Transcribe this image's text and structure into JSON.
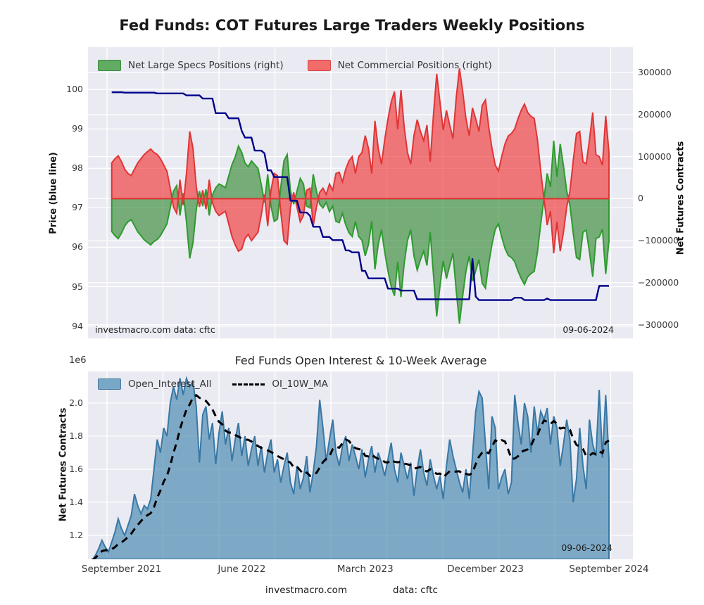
{
  "figure": {
    "title": "Fed Funds: COT Futures Large Traders Weekly Positions",
    "footer_site": "investmacro.com",
    "footer_data": "data: cftc",
    "bg_color": "#ffffff",
    "axes_bg_color": "#eaeaf2",
    "grid_color": "#ffffff"
  },
  "top_chart": {
    "source_note": "investmacro.com   data: cftc",
    "date_stamp": "09-06-2024",
    "left_axis": {
      "label": "Price (blue line)",
      "tick_values": [
        100,
        99,
        98,
        97,
        96,
        95,
        94
      ],
      "tick_labels": [
        "100",
        "99",
        "98",
        "97",
        "96",
        "95",
        "94"
      ]
    },
    "right_axis": {
      "label": "Net Futures Contracts",
      "tick_values": [
        300000,
        200000,
        100000,
        0,
        -100000,
        -200000,
        -300000
      ],
      "tick_labels": [
        "300000",
        "200000",
        "100000",
        "0",
        "−100000",
        "−200000",
        "−300000"
      ]
    },
    "colors": {
      "specs_fill": "rgba(20,120,20,0.55)",
      "specs_line": "#2e9b2e",
      "commercial_fill": "rgba(240,45,45,0.62)",
      "commercial_line": "#e03535",
      "price_line": "#00008b",
      "legend_specs_patch": "#62ab62",
      "legend_commercial_patch": "#f26c6c"
    }
  },
  "bottom_chart": {
    "title": "Fed Funds Open Interest & 10-Week Average",
    "offset_label": "1e6",
    "date_stamp": "09-06-2024",
    "y_axis": {
      "label": "Net Futures Contracts",
      "tick_values": [
        2.0,
        1.8,
        1.6,
        1.4,
        1.2
      ],
      "tick_labels": [
        "2.0",
        "1.8",
        "1.6",
        "1.4",
        "1.2"
      ]
    },
    "x_axis": {
      "tick_index": [
        9,
        46,
        84,
        121,
        159
      ],
      "tick_labels": [
        "September 2021",
        "June 2022",
        "March 2023",
        "December 2023",
        "September 2024"
      ]
    },
    "colors": {
      "oi_fill": "rgba(68,134,174,0.65)",
      "oi_line": "#3878a5",
      "ma_line": "#000000",
      "legend_oi_patch": "#79a8c7"
    }
  },
  "chart_data": [
    {
      "type": "area",
      "title": "Fed Funds: COT Futures Large Traders Weekly Positions",
      "x_description": "weekly observations, ~Aug 2021 through 09-06-2024",
      "x_tick_labels": [
        "September 2021",
        "June 2022",
        "March 2023",
        "December 2023",
        "September 2024"
      ],
      "x_tick_index": [
        9,
        46,
        84,
        121,
        159
      ],
      "left_ylabel": "Price (blue line)",
      "left_ylim": [
        93.7,
        101.1
      ],
      "right_ylabel": "Net Futures Contracts",
      "right_ylim": [
        -332000,
        360000
      ],
      "grid": true,
      "legend_position": "top-inside",
      "series": [
        {
          "name": "Net Large Specs Positions (right)",
          "type": "area",
          "axis": "right",
          "values": [
            null,
            null,
            null,
            null,
            null,
            null,
            -78000,
            -88000,
            -95000,
            -82000,
            -65000,
            -55000,
            -50000,
            -64000,
            -79000,
            -88000,
            -98000,
            -104000,
            -110000,
            -102000,
            -97000,
            -88000,
            -74000,
            -60000,
            -22000,
            18000,
            31000,
            -40000,
            13000,
            -55000,
            -142000,
            -105000,
            -27000,
            18000,
            -18000,
            22000,
            -40000,
            9000,
            26000,
            35000,
            31000,
            26000,
            54000,
            81000,
            99000,
            125000,
            110000,
            85000,
            76000,
            90000,
            81000,
            72000,
            34000,
            -9000,
            58000,
            -18000,
            -54000,
            -49000,
            26000,
            90000,
            105000,
            18000,
            -13000,
            18000,
            48000,
            35000,
            -18000,
            -22000,
            58000,
            18000,
            -13000,
            -22000,
            -9000,
            -31000,
            -18000,
            -54000,
            -57000,
            -35000,
            -62000,
            -81000,
            -90000,
            -54000,
            -90000,
            -99000,
            -136000,
            -109000,
            -54000,
            -168000,
            -109000,
            -74000,
            -127000,
            -172000,
            -209000,
            -231000,
            -150000,
            -234000,
            -154000,
            -100000,
            -74000,
            -136000,
            -170000,
            -145000,
            -125000,
            -159000,
            -80000,
            -181000,
            -280000,
            -208000,
            -148000,
            -190000,
            -159000,
            -130000,
            -218000,
            -297000,
            -231000,
            -172000,
            -136000,
            -196000,
            -172000,
            -145000,
            -201000,
            -213000,
            -155000,
            -109000,
            -73000,
            -60000,
            -91000,
            -118000,
            -135000,
            -140000,
            -150000,
            -172000,
            -190000,
            -204000,
            -186000,
            -178000,
            -173000,
            -127000,
            -60000,
            0,
            60000,
            28000,
            138000,
            52000,
            130000,
            78000,
            18000,
            -16000,
            -82000,
            -140000,
            -145000,
            -80000,
            -75000,
            -127000,
            -186000,
            -95000,
            -91000,
            -73000,
            -179000,
            -100000
          ]
        },
        {
          "name": "Net Commercial Positions (right)",
          "type": "area",
          "axis": "right",
          "values": [
            null,
            null,
            null,
            null,
            null,
            null,
            85000,
            95000,
            102000,
            88000,
            70000,
            60000,
            55000,
            70000,
            85000,
            95000,
            105000,
            112000,
            118000,
            110000,
            105000,
            95000,
            80000,
            65000,
            25000,
            -20000,
            -35000,
            45000,
            -15000,
            60000,
            160000,
            120000,
            30000,
            -20000,
            20000,
            -25000,
            45000,
            -10000,
            -30000,
            -40000,
            -35000,
            -30000,
            -60000,
            -90000,
            -110000,
            -125000,
            -120000,
            -95000,
            -85000,
            -100000,
            -90000,
            -80000,
            -40000,
            10000,
            -65000,
            20000,
            60000,
            55000,
            -30000,
            -100000,
            -108000,
            -20000,
            15000,
            -20000,
            -55000,
            -40000,
            20000,
            25000,
            -65000,
            -20000,
            15000,
            25000,
            10000,
            35000,
            20000,
            60000,
            63000,
            40000,
            70000,
            90000,
            100000,
            60000,
            100000,
            110000,
            150000,
            120000,
            60000,
            185000,
            120000,
            82000,
            140000,
            190000,
            230000,
            255000,
            165000,
            258000,
            170000,
            110000,
            82000,
            150000,
            188000,
            160000,
            138000,
            175000,
            88000,
            200000,
            297000,
            230000,
            163000,
            210000,
            175000,
            143000,
            240000,
            310000,
            255000,
            190000,
            150000,
            216000,
            190000,
            160000,
            222000,
            235000,
            171000,
            120000,
            80000,
            66000,
            100000,
            130000,
            149000,
            155000,
            166000,
            190000,
            210000,
            225000,
            205000,
            196000,
            191000,
            140000,
            66000,
            0,
            -63000,
            -30000,
            -130000,
            -55000,
            -125000,
            -80000,
            -20000,
            18000,
            90000,
            155000,
            160000,
            88000,
            83000,
            140000,
            205000,
            105000,
            100000,
            80000,
            197000,
            110000
          ]
        },
        {
          "name": "Price",
          "type": "line",
          "axis": "left",
          "values": [
            null,
            null,
            null,
            null,
            null,
            null,
            99.93,
            99.93,
            99.93,
            99.93,
            99.92,
            99.92,
            99.92,
            99.92,
            99.92,
            99.92,
            99.92,
            99.92,
            99.92,
            99.92,
            99.9,
            99.9,
            99.9,
            99.9,
            99.9,
            99.9,
            99.9,
            99.9,
            99.9,
            99.85,
            99.85,
            99.85,
            99.85,
            99.85,
            99.77,
            99.77,
            99.77,
            99.77,
            99.4,
            99.4,
            99.4,
            99.4,
            99.27,
            99.27,
            99.27,
            99.27,
            98.95,
            98.78,
            98.78,
            98.78,
            98.45,
            98.45,
            98.45,
            98.38,
            97.95,
            97.95,
            97.78,
            97.78,
            97.78,
            97.78,
            97.78,
            97.18,
            97.18,
            97.18,
            96.88,
            96.88,
            96.88,
            96.8,
            96.52,
            96.52,
            96.52,
            96.26,
            96.26,
            96.26,
            96.18,
            96.18,
            96.18,
            96.18,
            95.92,
            95.92,
            95.87,
            95.87,
            95.87,
            95.4,
            95.4,
            95.21,
            95.21,
            95.21,
            95.21,
            95.21,
            95.21,
            94.95,
            94.95,
            94.95,
            94.95,
            94.9,
            94.9,
            94.9,
            94.9,
            94.9,
            94.68,
            94.68,
            94.68,
            94.68,
            94.68,
            94.68,
            94.68,
            94.68,
            94.68,
            94.68,
            94.68,
            94.68,
            94.68,
            94.68,
            94.68,
            94.68,
            94.68,
            95.7,
            94.75,
            94.66,
            94.66,
            94.66,
            94.66,
            94.66,
            94.66,
            94.66,
            94.66,
            94.66,
            94.66,
            94.66,
            94.72,
            94.72,
            94.72,
            94.66,
            94.66,
            94.66,
            94.66,
            94.66,
            94.66,
            94.66,
            94.7,
            94.66,
            94.66,
            94.66,
            94.66,
            94.66,
            94.66,
            94.66,
            94.66,
            94.66,
            94.66,
            94.66,
            94.66,
            94.66,
            94.66,
            94.66,
            95.02,
            95.02,
            95.02,
            95.02
          ]
        }
      ],
      "annotations": [
        "investmacro.com   data: cftc",
        "09-06-2024"
      ]
    },
    {
      "type": "area",
      "title": "Fed Funds Open Interest & 10-Week Average",
      "ylabel": "Net Futures Contracts",
      "y_unit": "1e6",
      "ylim": [
        1.055,
        2.19
      ],
      "x_tick_labels": [
        "September 2021",
        "June 2022",
        "March 2023",
        "December 2023",
        "September 2024"
      ],
      "x_tick_index": [
        9,
        46,
        84,
        121,
        159
      ],
      "grid": true,
      "series": [
        {
          "name": "Open_Interest_All",
          "type": "area",
          "values": [
            1.05,
            1.08,
            1.12,
            1.17,
            1.13,
            1.1,
            1.16,
            1.22,
            1.3,
            1.24,
            1.2,
            1.26,
            1.32,
            1.45,
            1.38,
            1.33,
            1.38,
            1.36,
            1.42,
            1.6,
            1.78,
            1.7,
            1.85,
            1.8,
            2.0,
            2.1,
            2.02,
            2.15,
            2.05,
            2.15,
            2.1,
            2.13,
            1.98,
            1.64,
            1.93,
            1.98,
            1.78,
            1.88,
            1.63,
            1.82,
            1.95,
            1.75,
            1.85,
            1.65,
            1.78,
            1.88,
            1.68,
            1.8,
            1.62,
            1.72,
            1.8,
            1.62,
            1.74,
            1.58,
            1.7,
            1.78,
            1.58,
            1.66,
            1.52,
            1.62,
            1.7,
            1.52,
            1.45,
            1.62,
            1.48,
            1.55,
            1.68,
            1.46,
            1.58,
            1.74,
            2.02,
            1.85,
            1.65,
            1.78,
            1.9,
            1.7,
            1.62,
            1.74,
            1.8,
            1.65,
            1.75,
            1.68,
            1.6,
            1.72,
            1.55,
            1.66,
            1.74,
            1.58,
            1.7,
            1.64,
            1.56,
            1.66,
            1.76,
            1.6,
            1.52,
            1.7,
            1.62,
            1.54,
            1.64,
            1.44,
            1.6,
            1.72,
            1.58,
            1.5,
            1.66,
            1.56,
            1.48,
            1.56,
            1.42,
            1.62,
            1.78,
            1.68,
            1.6,
            1.52,
            1.46,
            1.6,
            1.42,
            1.68,
            1.95,
            2.07,
            2.03,
            1.75,
            1.48,
            1.92,
            1.85,
            1.48,
            1.55,
            1.6,
            1.45,
            1.52,
            2.05,
            1.88,
            1.75,
            2.0,
            1.92,
            1.7,
            1.98,
            1.82,
            1.95,
            1.9,
            1.97,
            1.75,
            1.92,
            1.85,
            1.62,
            1.75,
            1.9,
            1.78,
            1.4,
            1.54,
            1.85,
            1.62,
            1.48,
            1.9,
            1.75,
            1.68,
            2.08,
            1.67,
            2.05,
            1.66
          ]
        },
        {
          "name": "OI_10W_MA",
          "type": "line",
          "style": "dashed",
          "ma_window": 10,
          "derived_from": "Open_Interest_All (10-week trailing mean)"
        }
      ],
      "annotations": [
        "09-06-2024"
      ]
    }
  ]
}
